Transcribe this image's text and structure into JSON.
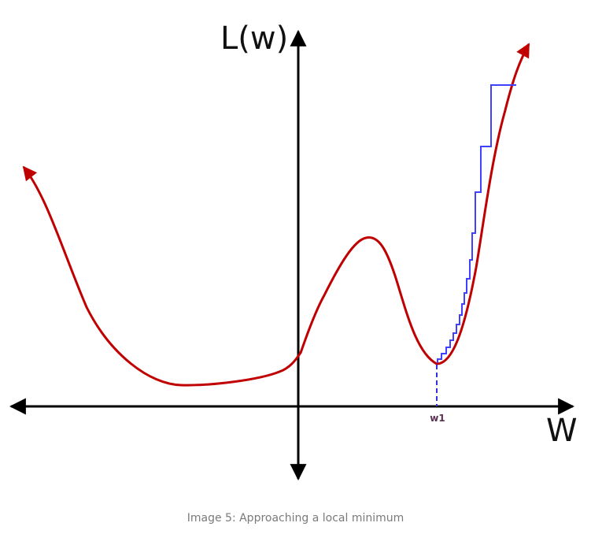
{
  "figure": {
    "y_axis_label": "L(w)",
    "x_axis_label": "W",
    "minimum_label": "w1",
    "caption": "Image 5: Approaching a local minimum"
  },
  "colors": {
    "axis": "#000000",
    "curve": "#c00000",
    "steps": "#4040ff",
    "marker": "#3030dd",
    "minimum_label": "#5a3050",
    "caption": "#7a7a7a"
  }
}
